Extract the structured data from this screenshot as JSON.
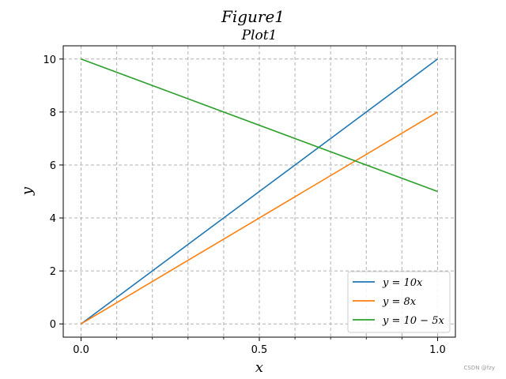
{
  "figure_title": "Figure1",
  "chart_data": {
    "type": "line",
    "title": "Plot1",
    "xlabel": "x",
    "ylabel": "y",
    "xlim": [
      -0.05,
      1.05
    ],
    "ylim": [
      -0.5,
      10.5
    ],
    "x_ticks": [
      0.0,
      0.5,
      1.0
    ],
    "x_tick_labels": [
      "0.0",
      "0.5",
      "1.0"
    ],
    "x_minor_ticks": [
      0.1,
      0.2,
      0.3,
      0.4,
      0.6,
      0.7,
      0.8,
      0.9
    ],
    "y_ticks": [
      0,
      2,
      4,
      6,
      8,
      10
    ],
    "y_tick_labels": [
      "0",
      "2",
      "4",
      "6",
      "8",
      "10"
    ],
    "grid": true,
    "legend_position": "lower-right",
    "series": [
      {
        "name": "y = 10x",
        "color": "#1f77b4",
        "x": [
          0,
          1
        ],
        "y": [
          0,
          10
        ]
      },
      {
        "name": "y = 8x",
        "color": "#ff7f0e",
        "x": [
          0,
          1
        ],
        "y": [
          0,
          8
        ]
      },
      {
        "name": "y = 10 − 5x",
        "color": "#2ca02c",
        "x": [
          0,
          1
        ],
        "y": [
          10,
          5
        ]
      }
    ]
  },
  "watermark": "CSDN @fzy"
}
